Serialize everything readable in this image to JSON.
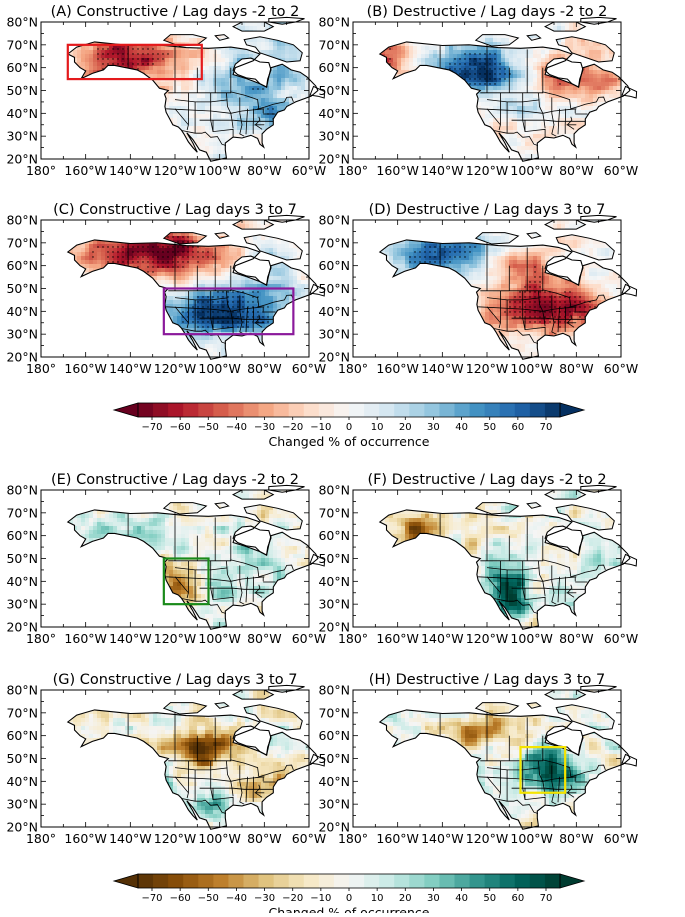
{
  "panels": [
    {
      "id": "A",
      "title": "(A) Constructive / Lag days -2 to 2",
      "palette": "rb",
      "pattern": "warm-north",
      "box": {
        "color": "#e41a1c",
        "lon": [
          -168,
          -108
        ],
        "lat": [
          55,
          70
        ]
      }
    },
    {
      "id": "B",
      "title": "(B) Destructive / Lag days -2 to 2",
      "palette": "rb",
      "pattern": "cold-north"
    },
    {
      "id": "C",
      "title": "(C) Constructive / Lag days 3 to 7",
      "palette": "rb",
      "pattern": "warm-north-cold-south",
      "box": {
        "color": "#8b1a9b",
        "lon": [
          -125,
          -67
        ],
        "lat": [
          30,
          50
        ]
      }
    },
    {
      "id": "D",
      "title": "(D) Destructive / Lag days 3 to 7",
      "palette": "rb",
      "pattern": "cold-north-warm-south"
    },
    {
      "id": "E",
      "title": "(E) Constructive / Lag days -2 to 2",
      "palette": "bg",
      "pattern": "dry-west",
      "box": {
        "color": "#1a8a1a",
        "lon": [
          -125,
          -105
        ],
        "lat": [
          30,
          50
        ]
      }
    },
    {
      "id": "F",
      "title": "(F) Destructive / Lag days -2 to 2",
      "palette": "bg",
      "pattern": "wet-west"
    },
    {
      "id": "G",
      "title": "(G) Constructive / Lag days 3 to 7",
      "palette": "bg",
      "pattern": "dry-central"
    },
    {
      "id": "H",
      "title": "(H) Destructive / Lag days 3 to 7",
      "palette": "bg",
      "pattern": "wet-central",
      "box": {
        "color": "#f5e400",
        "lon": [
          -105,
          -85
        ],
        "lat": [
          35,
          55
        ]
      }
    }
  ],
  "axes": {
    "lon_ticks": [
      "180°",
      "160°W",
      "140°W",
      "120°W",
      "100°W",
      "80°W",
      "60°W"
    ],
    "lat_ticks": [
      "20°N",
      "30°N",
      "40°N",
      "50°N",
      "60°N",
      "70°N",
      "80°N"
    ]
  },
  "colorbars": [
    {
      "label": "Changed % of occurrence",
      "ticks": [
        "−70",
        "−60",
        "−50",
        "−40",
        "−30",
        "−20",
        "−10",
        "0",
        "10",
        "20",
        "30",
        "40",
        "50",
        "60",
        "70"
      ],
      "palette": "rb"
    },
    {
      "label": "Changed % of occurrence",
      "ticks": [
        "−70",
        "−60",
        "−50",
        "−40",
        "−30",
        "−20",
        "−10",
        "0",
        "10",
        "20",
        "30",
        "40",
        "50",
        "60",
        "70"
      ],
      "palette": "bg"
    }
  ],
  "colors": {
    "rb_neg": "#67001f",
    "rb_mid": "#f7f7f7",
    "rb_pos": "#053061",
    "bg_neg": "#543005",
    "bg_mid": "#f5f5f5",
    "bg_pos": "#003c30"
  }
}
